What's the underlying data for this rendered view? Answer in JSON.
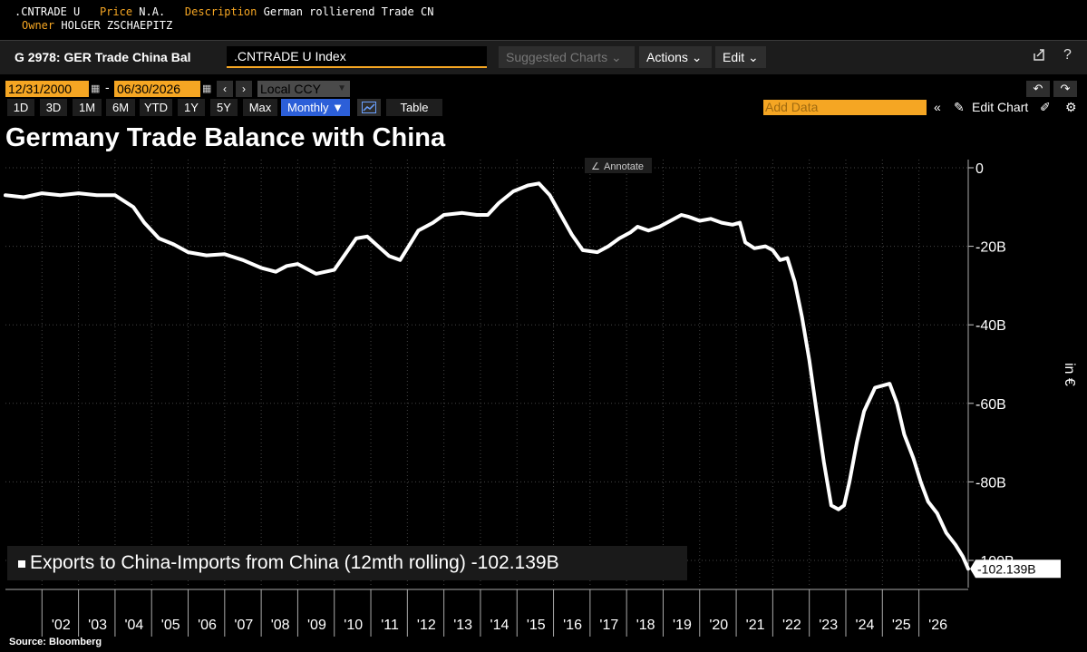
{
  "info": {
    "ticker_label": ".CNTRADE U",
    "price_key": "Price",
    "price_value": "N.A.",
    "description_key": "Description",
    "description_value": "German rollierend Trade CN",
    "owner_key": "Owner",
    "owner_value": "HOLGER ZSCHAEPITZ"
  },
  "toolbar": {
    "title": "G 2978: GER Trade China Bal",
    "ticker_input": ".CNTRADE U Index",
    "suggested_label": "Suggested Charts ⌄",
    "actions_label": "Actions ⌄",
    "edit_label": "Edit ⌄",
    "export_icon": "export-icon",
    "help_label": "?"
  },
  "datebar": {
    "start_date": "12/31/2000",
    "end_date": "06/30/2026",
    "separator": "-",
    "currency": "Local CCY"
  },
  "periodbar": {
    "periods": [
      "1D",
      "3D",
      "1M",
      "6M",
      "YTD",
      "1Y",
      "5Y",
      "Max"
    ],
    "frequency": "Monthly ▼",
    "table_label": "Table",
    "add_data_placeholder": "Add Data",
    "edit_chart_label": "Edit Chart"
  },
  "colors": {
    "background": "#000000",
    "accent": "#f5a623",
    "selected": "#2c5fd8",
    "line": "#ffffff",
    "grid": "#444444"
  },
  "chart_data": {
    "type": "line",
    "title": "Germany Trade Balance with China",
    "annotate_label": "Annotate",
    "legend_text": "Exports to China-Imports from China (12mth rolling) -102.139B",
    "last_value_label": "-102.139B",
    "ylabel": "in €",
    "ylim": [
      -105,
      2
    ],
    "xlim": [
      2001.0,
      2026.5
    ],
    "yticks": [
      0,
      -20,
      -40,
      -60,
      -80,
      -100
    ],
    "ytick_labels": [
      "0",
      "-20B",
      "-40B",
      "-60B",
      "-80B",
      "-100B"
    ],
    "xtick_labels": [
      "'02",
      "'03",
      "'04",
      "'05",
      "'06",
      "'07",
      "'08",
      "'09",
      "'10",
      "'11",
      "'12",
      "'13",
      "'14",
      "'15",
      "'16",
      "'17",
      "'18",
      "'19",
      "'20",
      "'21",
      "'22",
      "'23",
      "'24",
      "'25",
      "'26"
    ],
    "xtick_years": [
      2002,
      2003,
      2004,
      2005,
      2006,
      2007,
      2008,
      2009,
      2010,
      2011,
      2012,
      2013,
      2014,
      2015,
      2016,
      2017,
      2018,
      2019,
      2020,
      2021,
      2022,
      2023,
      2024,
      2025,
      2026
    ],
    "grid": true,
    "series": [
      {
        "name": "Exports to China-Imports from China (12mth rolling)",
        "points": [
          [
            2001.0,
            -7.0
          ],
          [
            2001.5,
            -7.5
          ],
          [
            2002.0,
            -6.5
          ],
          [
            2002.5,
            -7.0
          ],
          [
            2003.0,
            -6.5
          ],
          [
            2003.5,
            -7.0
          ],
          [
            2004.0,
            -7.0
          ],
          [
            2004.5,
            -10.0
          ],
          [
            2004.8,
            -14.0
          ],
          [
            2005.2,
            -18.0
          ],
          [
            2005.6,
            -19.5
          ],
          [
            2006.0,
            -21.5
          ],
          [
            2006.5,
            -22.3
          ],
          [
            2007.0,
            -22.0
          ],
          [
            2007.5,
            -23.5
          ],
          [
            2008.0,
            -25.5
          ],
          [
            2008.4,
            -26.5
          ],
          [
            2008.7,
            -25.0
          ],
          [
            2009.0,
            -24.5
          ],
          [
            2009.5,
            -27.0
          ],
          [
            2010.0,
            -26.0
          ],
          [
            2010.3,
            -22.0
          ],
          [
            2010.6,
            -18.0
          ],
          [
            2010.9,
            -17.5
          ],
          [
            2011.2,
            -20.0
          ],
          [
            2011.5,
            -22.5
          ],
          [
            2011.8,
            -23.5
          ],
          [
            2012.1,
            -19.0
          ],
          [
            2012.3,
            -16.0
          ],
          [
            2012.7,
            -14.0
          ],
          [
            2013.0,
            -12.0
          ],
          [
            2013.5,
            -11.5
          ],
          [
            2013.9,
            -12.0
          ],
          [
            2014.2,
            -12.0
          ],
          [
            2014.5,
            -9.0
          ],
          [
            2014.9,
            -6.0
          ],
          [
            2015.3,
            -4.5
          ],
          [
            2015.6,
            -4.0
          ],
          [
            2015.9,
            -7.0
          ],
          [
            2016.2,
            -12.0
          ],
          [
            2016.5,
            -17.0
          ],
          [
            2016.8,
            -21.0
          ],
          [
            2017.2,
            -21.5
          ],
          [
            2017.5,
            -20.0
          ],
          [
            2017.8,
            -18.0
          ],
          [
            2018.1,
            -16.5
          ],
          [
            2018.3,
            -15.0
          ],
          [
            2018.6,
            -16.0
          ],
          [
            2018.9,
            -15.0
          ],
          [
            2019.2,
            -13.5
          ],
          [
            2019.5,
            -12.0
          ],
          [
            2019.7,
            -12.5
          ],
          [
            2020.0,
            -13.5
          ],
          [
            2020.3,
            -13.0
          ],
          [
            2020.6,
            -14.0
          ],
          [
            2020.9,
            -14.5
          ],
          [
            2021.1,
            -14.0
          ],
          [
            2021.25,
            -19.0
          ],
          [
            2021.5,
            -20.5
          ],
          [
            2021.8,
            -20.0
          ],
          [
            2022.0,
            -21.0
          ],
          [
            2022.2,
            -23.5
          ],
          [
            2022.4,
            -23.0
          ],
          [
            2022.6,
            -29.0
          ],
          [
            2022.8,
            -38.0
          ],
          [
            2023.0,
            -49.0
          ],
          [
            2023.2,
            -62.0
          ],
          [
            2023.4,
            -75.0
          ],
          [
            2023.6,
            -86.0
          ],
          [
            2023.8,
            -87.0
          ],
          [
            2023.95,
            -86.0
          ],
          [
            2024.1,
            -80.0
          ],
          [
            2024.3,
            -70.0
          ],
          [
            2024.5,
            -62.0
          ],
          [
            2024.8,
            -56.0
          ],
          [
            2025.0,
            -55.5
          ],
          [
            2025.2,
            -55.0
          ],
          [
            2025.4,
            -60.0
          ],
          [
            2025.6,
            -68.0
          ],
          [
            2025.85,
            -74.0
          ],
          [
            2026.05,
            -80.0
          ],
          [
            2026.25,
            -85.0
          ],
          [
            2026.5,
            -88.0
          ],
          [
            2026.75,
            -93.0
          ],
          [
            2027.0,
            -96.0
          ],
          [
            2027.2,
            -99.0
          ],
          [
            2027.35,
            -102.139
          ]
        ]
      }
    ]
  },
  "source": "Source: Bloomberg"
}
